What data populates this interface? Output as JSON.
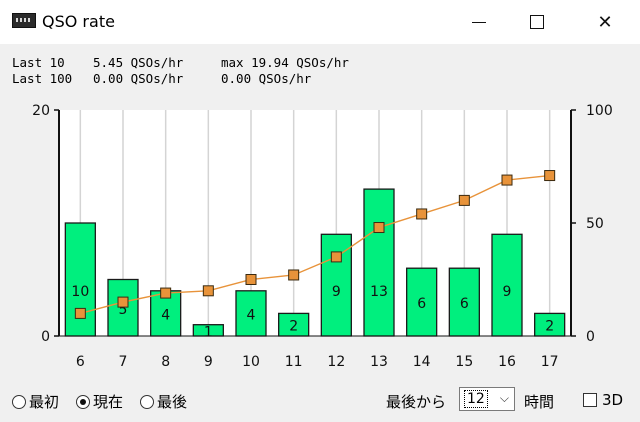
{
  "window": {
    "title": "QSO rate",
    "icons": {
      "app": "radio-app-icon",
      "minimize": "minimize-icon",
      "maximize": "maximize-icon",
      "close": "close-icon"
    }
  },
  "stats": {
    "last10_label": "Last 10",
    "last10_rate": "5.45 QSOs/hr",
    "max_label": "max 19.94 QSOs/hr",
    "last100_label": "Last 100",
    "last100_rate": "0.00 QSOs/hr",
    "rate2": "0.00 QSOs/hr"
  },
  "chart_data": {
    "type": "bar",
    "categories": [
      "6",
      "7",
      "8",
      "9",
      "10",
      "11",
      "12",
      "13",
      "14",
      "15",
      "16",
      "17"
    ],
    "series": [
      {
        "type": "bar",
        "values": [
          10,
          5,
          4,
          1,
          4,
          2,
          9,
          13,
          6,
          6,
          9,
          2
        ],
        "axis": "left",
        "color": "#00ef7e"
      },
      {
        "type": "line",
        "values": [
          10,
          15,
          19,
          20,
          25,
          27,
          35,
          48,
          54,
          60,
          69,
          71
        ],
        "axis": "right",
        "color": "#e8933a"
      }
    ],
    "ylim_left": [
      0,
      20
    ],
    "ylim_right": [
      0,
      100
    ],
    "left_ticks": [
      "0",
      "20"
    ],
    "right_ticks": [
      "0",
      "50",
      "100"
    ],
    "grid": true
  },
  "controls": {
    "radios": [
      {
        "label": "最初",
        "checked": false
      },
      {
        "label": "現在",
        "checked": true
      },
      {
        "label": "最後",
        "checked": false
      }
    ],
    "from_last_label": "最後から",
    "hours_value": "12",
    "hours_label": "時間",
    "checkbox_3d_label": "3D",
    "checkbox_3d_checked": false
  }
}
